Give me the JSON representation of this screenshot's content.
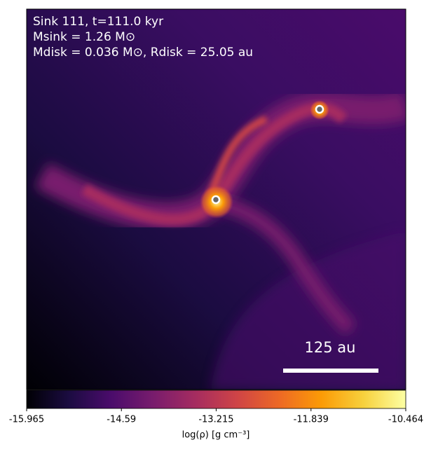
{
  "chart_data": {
    "type": "density-map",
    "annotations": [
      "Sink 111, t=111.0 kyr",
      "Msink = 1.26 M⊙",
      "Mdisk = 0.036 M⊙, Rdisk = 25.05 au"
    ],
    "scale_bar_label": "125 au",
    "colorbar_label": "log(ρ) [g cm⁻³]",
    "clim": [
      -15.965,
      -10.464
    ],
    "cticks": [
      -15.965,
      -14.59,
      -13.215,
      -11.839,
      -10.464
    ],
    "colormap": [
      "#000004",
      "#1b0c41",
      "#4a0c6b",
      "#781c6d",
      "#a52c60",
      "#cf4446",
      "#ed6925",
      "#fb9b06",
      "#f7d13d",
      "#fcffa4"
    ]
  }
}
